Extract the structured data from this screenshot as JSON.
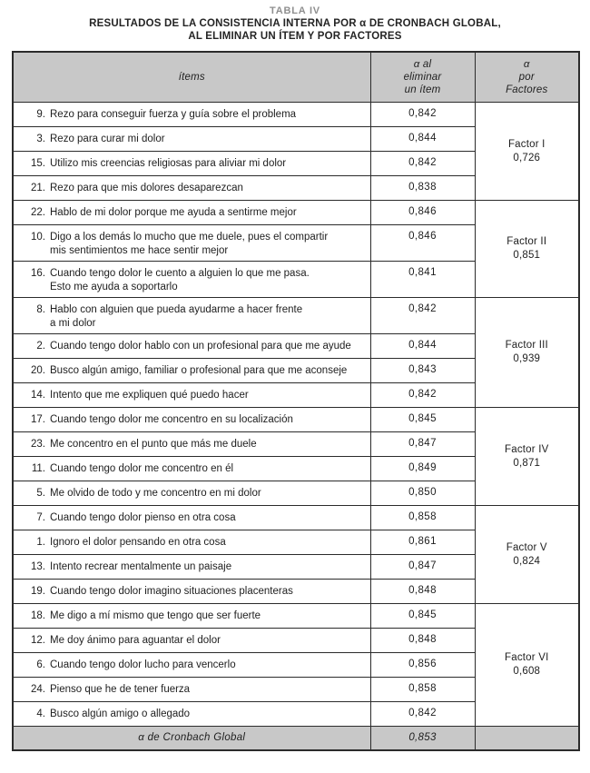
{
  "title": {
    "label": "TABLA IV",
    "line1": "RESULTADOS DE LA CONSISTENCIA INTERNA POR α DE CRONBACH GLOBAL,",
    "line2": "AL ELIMINAR UN ÍTEM Y POR FACTORES"
  },
  "table": {
    "headers": {
      "items": "ítems",
      "alpha_item_lines": [
        "α al",
        "eliminar",
        "un ítem"
      ],
      "alpha_factor_lines": [
        "α",
        "por",
        "Factores"
      ]
    },
    "groups": [
      {
        "factor": "Factor I",
        "factor_alpha": "0,726",
        "items": [
          {
            "num": "9.",
            "lines": [
              "Rezo para conseguir fuerza y guía sobre el problema"
            ],
            "alpha": "0,842"
          },
          {
            "num": "3.",
            "lines": [
              "Rezo para curar mi dolor"
            ],
            "alpha": "0,844"
          },
          {
            "num": "15.",
            "lines": [
              "Utilizo mis creencias religiosas para aliviar mi dolor"
            ],
            "alpha": "0,842"
          },
          {
            "num": "21.",
            "lines": [
              "Rezo para que mis dolores desaparezcan"
            ],
            "alpha": "0,838"
          }
        ]
      },
      {
        "factor": "Factor II",
        "factor_alpha": "0,851",
        "items": [
          {
            "num": "22.",
            "lines": [
              "Hablo de mi dolor porque me ayuda a sentirme mejor"
            ],
            "alpha": "0,846"
          },
          {
            "num": "10.",
            "lines": [
              "Digo a los demás lo mucho que me duele, pues el compartir",
              "mis sentimientos me hace sentir mejor"
            ],
            "alpha": "0,846"
          },
          {
            "num": "16.",
            "lines": [
              "Cuando tengo dolor le cuento a alguien lo que me pasa.",
              "Esto me ayuda a soportarlo"
            ],
            "alpha": "0,841"
          }
        ]
      },
      {
        "factor": "Factor III",
        "factor_alpha": "0,939",
        "items": [
          {
            "num": "8.",
            "lines": [
              "Hablo con alguien que pueda ayudarme a hacer frente",
              "a mi dolor"
            ],
            "alpha": "0,842"
          },
          {
            "num": "2.",
            "lines": [
              "Cuando tengo dolor hablo con un profesional para que me ayude"
            ],
            "alpha": "0,844"
          },
          {
            "num": "20.",
            "lines": [
              "Busco algún amigo, familiar o profesional para que me aconseje"
            ],
            "alpha": "0,843"
          },
          {
            "num": "14.",
            "lines": [
              "Intento que me expliquen qué puedo hacer"
            ],
            "alpha": "0,842"
          }
        ]
      },
      {
        "factor": "Factor IV",
        "factor_alpha": "0,871",
        "items": [
          {
            "num": "17.",
            "lines": [
              "Cuando tengo dolor me concentro en su localización"
            ],
            "alpha": "0,845"
          },
          {
            "num": "23.",
            "lines": [
              "Me concentro en el punto que más me duele"
            ],
            "alpha": "0,847"
          },
          {
            "num": "11.",
            "lines": [
              "Cuando tengo dolor me concentro en él"
            ],
            "alpha": "0,849"
          },
          {
            "num": "5.",
            "lines": [
              "Me olvido de todo y me concentro en mi dolor"
            ],
            "alpha": "0,850"
          }
        ]
      },
      {
        "factor": "Factor V",
        "factor_alpha": "0,824",
        "items": [
          {
            "num": "7.",
            "lines": [
              "Cuando tengo dolor pienso en otra cosa"
            ],
            "alpha": "0,858"
          },
          {
            "num": "1.",
            "lines": [
              "Ignoro el dolor pensando en otra cosa"
            ],
            "alpha": "0,861"
          },
          {
            "num": "13.",
            "lines": [
              "Intento recrear mentalmente un paisaje"
            ],
            "alpha": "0,847"
          },
          {
            "num": "19.",
            "lines": [
              "Cuando tengo dolor imagino situaciones placenteras"
            ],
            "alpha": "0,848"
          }
        ]
      },
      {
        "factor": "Factor VI",
        "factor_alpha": "0,608",
        "items": [
          {
            "num": "18.",
            "lines": [
              "Me digo a mí mismo que tengo que ser fuerte"
            ],
            "alpha": "0,845"
          },
          {
            "num": "12.",
            "lines": [
              "Me doy ánimo para aguantar el dolor"
            ],
            "alpha": "0,848"
          },
          {
            "num": "6.",
            "lines": [
              "Cuando tengo dolor lucho para vencerlo"
            ],
            "alpha": "0,856"
          },
          {
            "num": "24.",
            "lines": [
              "Pienso que he de tener fuerza"
            ],
            "alpha": "0,858"
          },
          {
            "num": "4.",
            "lines": [
              "Busco algún amigo o allegado"
            ],
            "alpha": "0,842"
          }
        ]
      }
    ],
    "footer": {
      "label": "α de Cronbach Global",
      "value": "0,853"
    }
  },
  "colors": {
    "header_bg": "#c8c8c8",
    "border": "#2b2b2b",
    "title_gray": "#8f8f8f"
  },
  "chart_data": {
    "type": "table",
    "title": "TABLA IV — Resultados de la consistencia interna por α de Cronbach global, al eliminar un ítem y por factores",
    "columns": [
      "ítems",
      "α al eliminar un ítem",
      "α por Factores"
    ],
    "factor_alphas": {
      "Factor I": 0.726,
      "Factor II": 0.851,
      "Factor III": 0.939,
      "Factor IV": 0.871,
      "Factor V": 0.824,
      "Factor VI": 0.608
    },
    "global_alpha": 0.853
  }
}
